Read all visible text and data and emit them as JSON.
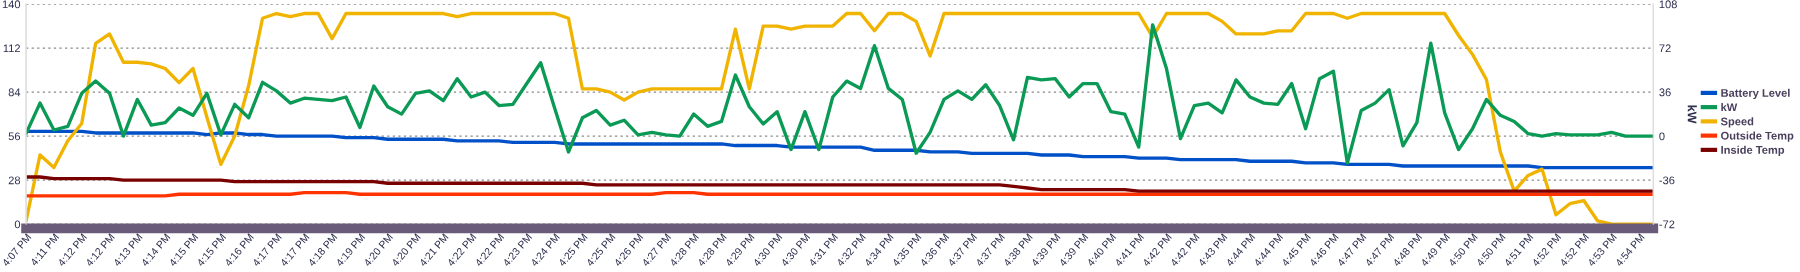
{
  "chart_data": {
    "type": "line",
    "categories": [
      "4:07 PM",
      null,
      "4:11 PM",
      null,
      "4:12 PM",
      null,
      "4:12 PM",
      null,
      "4:13 PM",
      null,
      "4:14 PM",
      null,
      "4:15 PM",
      null,
      "4:15 PM",
      null,
      "4:16 PM",
      null,
      "4:17 PM",
      null,
      "4:17 PM",
      null,
      "4:18 PM",
      null,
      "4:19 PM",
      null,
      "4:20 PM",
      null,
      "4:20 PM",
      null,
      "4:21 PM",
      null,
      "4:22 PM",
      null,
      "4:22 PM",
      null,
      "4:23 PM",
      null,
      "4:24 PM",
      null,
      "4:25 PM",
      null,
      "4:25 PM",
      null,
      "4:26 PM",
      null,
      "4:27 PM",
      null,
      "4:28 PM",
      null,
      "4:28 PM",
      null,
      "4:29 PM",
      null,
      "4:30 PM",
      null,
      "4:30 PM",
      null,
      "4:31 PM",
      null,
      "4:32 PM",
      null,
      "4:34 PM",
      null,
      "4:35 PM",
      null,
      "4:36 PM",
      null,
      "4:37 PM",
      null,
      "4:37 PM",
      null,
      "4:38 PM",
      null,
      "4:39 PM",
      null,
      "4:39 PM",
      null,
      "4:40 PM",
      null,
      "4:41 PM",
      null,
      "4:42 PM",
      null,
      "4:42 PM",
      null,
      "4:43 PM",
      null,
      "4:44 PM",
      null,
      "4:44 PM",
      null,
      "4:45 PM",
      null,
      "4:46 PM",
      null,
      "4:47 PM",
      null,
      "4:47 PM",
      null,
      "4:48 PM",
      null,
      "4:49 PM",
      null,
      "4:50 PM",
      null,
      "4:50 PM",
      null,
      "4:51 PM",
      null,
      "4:52 PM",
      null,
      "4:52 PM",
      null,
      "4:53 PM",
      null,
      "4:54 PM",
      null
    ],
    "series": [
      {
        "name": "Battery Level",
        "color": "#0050c8",
        "values": [
          59,
          59,
          59,
          59,
          59,
          58,
          58,
          58,
          58,
          58,
          58,
          58,
          58,
          57,
          58,
          58,
          57,
          57,
          56,
          56,
          56,
          56,
          56,
          55,
          55,
          55,
          54,
          54,
          54,
          54,
          54,
          53,
          53,
          53,
          53,
          52,
          52,
          52,
          52,
          51,
          51,
          51,
          51,
          51,
          51,
          51,
          51,
          51,
          51,
          51,
          51,
          50,
          50,
          50,
          50,
          49,
          49,
          49,
          49,
          49,
          49,
          47,
          47,
          47,
          47,
          46,
          46,
          46,
          45,
          45,
          45,
          45,
          45,
          44,
          44,
          44,
          43,
          43,
          43,
          43,
          42,
          42,
          42,
          41,
          41,
          41,
          41,
          41,
          40,
          40,
          40,
          40,
          39,
          39,
          39,
          38,
          38,
          38,
          38,
          37,
          37,
          37,
          37,
          37,
          37,
          37,
          37,
          37,
          37,
          36,
          36,
          36,
          36,
          36,
          36,
          36,
          36,
          36
        ]
      },
      {
        "name": "kW",
        "color": "#0a9a55",
        "axis": "y2",
        "values": [
          2,
          27,
          5,
          8,
          35,
          45,
          35,
          0,
          30,
          9,
          11,
          23,
          17,
          35,
          1,
          26,
          15,
          44,
          37,
          27,
          31,
          30,
          29,
          32,
          7,
          41,
          24,
          18,
          35,
          37,
          29,
          47,
          32,
          36,
          25,
          26,
          43,
          60,
          23,
          -13,
          15,
          21,
          9,
          13,
          1,
          3,
          1,
          0,
          18,
          8,
          12,
          50,
          24,
          10,
          20,
          -11,
          20,
          -11,
          32,
          45,
          39,
          74,
          39,
          30,
          -14,
          3,
          30,
          37,
          30,
          42,
          25,
          -3,
          48,
          46,
          47,
          32,
          43,
          43,
          20,
          18,
          -9,
          91,
          55,
          -2,
          25,
          27,
          19,
          46,
          32,
          27,
          26,
          43,
          6,
          47,
          53,
          -22,
          21,
          27,
          38,
          -8,
          11,
          76,
          19,
          -11,
          6,
          30,
          17,
          12,
          2,
          0,
          2,
          1,
          1,
          1,
          3,
          0,
          0,
          0
        ]
      },
      {
        "name": "Speed",
        "color": "#f0b400",
        "values": [
          2,
          44,
          36,
          53,
          64,
          115,
          121,
          103,
          103,
          102,
          99,
          90,
          99,
          68,
          38,
          56,
          88,
          131,
          134,
          132,
          134,
          134,
          118,
          134,
          134,
          134,
          134,
          134,
          134,
          134,
          134,
          132,
          134,
          134,
          134,
          134,
          134,
          134,
          134,
          131,
          86,
          86,
          84,
          79,
          84,
          86,
          86,
          86,
          86,
          86,
          86,
          124,
          86,
          126,
          126,
          124,
          126,
          126,
          126,
          134,
          134,
          123,
          134,
          134,
          129,
          107,
          134,
          134,
          134,
          134,
          134,
          134,
          134,
          134,
          134,
          134,
          134,
          134,
          134,
          134,
          134,
          119,
          134,
          134,
          134,
          134,
          129,
          121,
          121,
          121,
          123,
          123,
          134,
          134,
          134,
          131,
          134,
          134,
          134,
          134,
          134,
          134,
          134,
          120,
          108,
          92,
          46,
          21,
          31,
          35,
          6,
          13,
          15,
          2,
          0,
          0,
          0,
          0
        ]
      },
      {
        "name": "Outside Temp",
        "color": "#ff3300",
        "values": [
          18,
          18,
          18,
          18,
          18,
          18,
          18,
          18,
          18,
          18,
          18,
          19,
          19,
          19,
          19,
          19,
          19,
          19,
          19,
          19,
          20,
          20,
          20,
          20,
          19,
          19,
          19,
          19,
          19,
          19,
          19,
          19,
          19,
          19,
          19,
          19,
          19,
          19,
          19,
          19,
          19,
          19,
          19,
          19,
          19,
          19,
          20,
          20,
          20,
          19,
          19,
          19,
          19,
          19,
          19,
          19,
          19,
          19,
          19,
          19,
          19,
          19,
          19,
          19,
          19,
          19,
          19,
          19,
          19,
          19,
          19,
          19,
          19,
          19,
          19,
          19,
          19,
          19,
          19,
          19,
          19,
          19,
          19,
          19,
          19,
          19,
          19,
          19,
          19,
          19,
          19,
          19,
          19,
          19,
          19,
          19,
          19,
          19,
          19,
          19,
          19,
          19,
          19,
          19,
          19,
          19,
          19,
          19,
          19,
          19,
          19,
          19,
          19,
          19,
          19,
          19,
          19,
          19
        ]
      },
      {
        "name": "Inside Temp",
        "color": "#7a0000",
        "values": [
          30,
          30,
          29,
          29,
          29,
          29,
          29,
          28,
          28,
          28,
          28,
          28,
          28,
          28,
          28,
          27,
          27,
          27,
          27,
          27,
          27,
          27,
          27,
          27,
          27,
          27,
          26,
          26,
          26,
          26,
          26,
          26,
          26,
          26,
          26,
          26,
          26,
          26,
          26,
          26,
          26,
          25,
          25,
          25,
          25,
          25,
          25,
          25,
          25,
          25,
          25,
          25,
          25,
          25,
          25,
          25,
          25,
          25,
          25,
          25,
          25,
          25,
          25,
          25,
          25,
          25,
          25,
          25,
          25,
          25,
          25,
          24,
          23,
          22,
          22,
          22,
          22,
          22,
          22,
          22,
          21,
          21,
          21,
          21,
          21,
          21,
          21,
          21,
          21,
          21,
          21,
          21,
          21,
          21,
          21,
          21,
          21,
          21,
          21,
          21,
          21,
          21,
          21,
          21,
          21,
          21,
          21,
          21,
          21,
          21,
          21,
          21,
          21,
          21,
          21,
          21,
          21,
          21
        ]
      }
    ],
    "y2label": "kW",
    "ylim": [
      0,
      140
    ],
    "yticks": [
      0,
      28,
      56,
      84,
      112,
      140
    ],
    "y2lim": [
      -72,
      108
    ],
    "y2ticks": [
      {
        "value": -72,
        "label": "-72"
      },
      {
        "value": -36,
        "label": "-36"
      },
      0,
      36,
      72,
      108
    ],
    "grid": "y",
    "legend": "right",
    "marker": "none",
    "line_style": "solid"
  }
}
